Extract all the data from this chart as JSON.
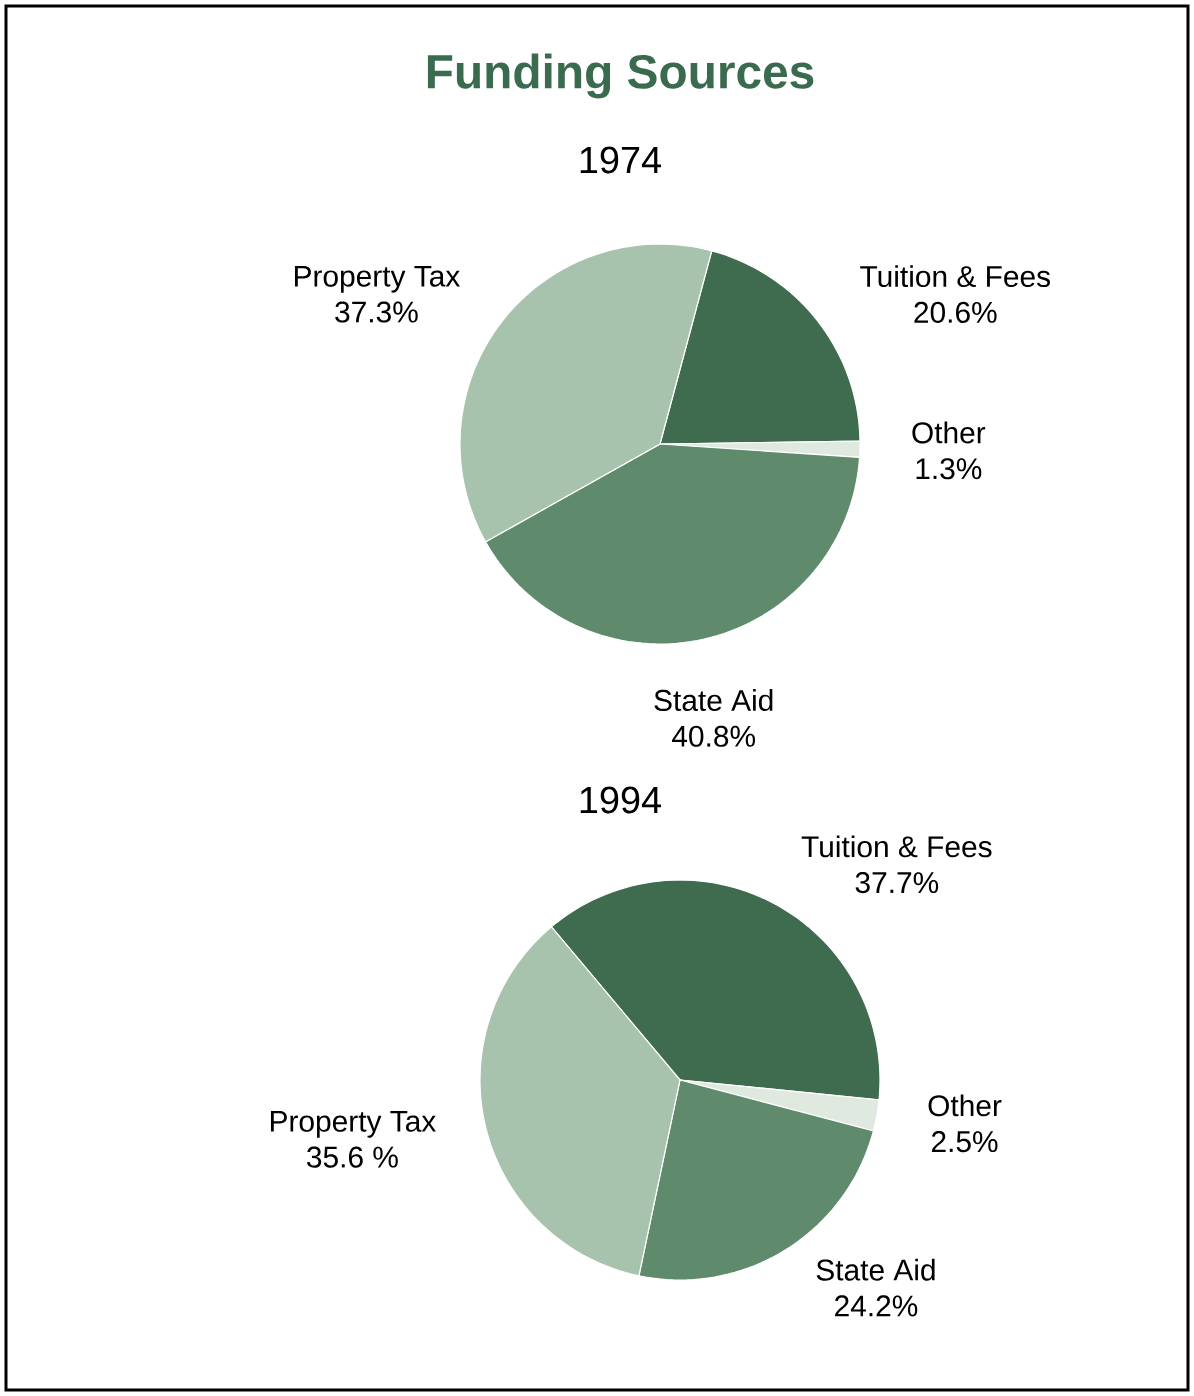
{
  "chart_data": [
    {
      "type": "pie",
      "title": "Funding Sources",
      "subtitle": "1974",
      "categories": [
        "Tuition & Fees",
        "Other",
        "State Aid",
        "Property Tax"
      ],
      "values": [
        20.6,
        1.3,
        40.8,
        37.3
      ],
      "value_labels": [
        "20.6%",
        "1.3%",
        "40.8%",
        "37.3%"
      ],
      "colors": [
        "#3f6b4e",
        "#dfe9e0",
        "#5f8b6c",
        "#a7c3ad"
      ]
    },
    {
      "type": "pie",
      "title": "1994",
      "categories": [
        "Tuition & Fees",
        "Other",
        "State Aid",
        "Property Tax"
      ],
      "values": [
        37.7,
        2.5,
        24.2,
        35.6
      ],
      "value_labels": [
        "37.7%",
        "2.5%",
        "24.2%",
        "35.6 %"
      ],
      "colors": [
        "#3f6b4e",
        "#dfe9e0",
        "#5f8b6c",
        "#a7c3ad"
      ]
    }
  ]
}
